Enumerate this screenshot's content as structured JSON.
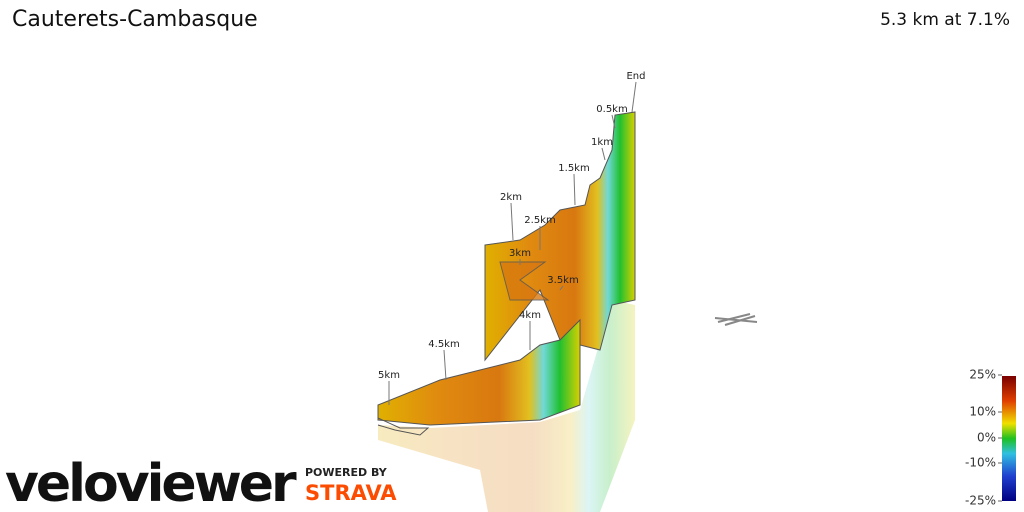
{
  "header": {
    "title": "Cauterets-Cambasque",
    "summary": "5.3 km at 7.1%"
  },
  "markers": [
    "End",
    "0.5km",
    "1km",
    "1.5km",
    "2km",
    "2.5km",
    "3km",
    "3.5km",
    "4km",
    "4.5km",
    "5km"
  ],
  "colorbar": {
    "ticks": [
      {
        "value": 25,
        "label": "25%"
      },
      {
        "value": 10,
        "label": "10%"
      },
      {
        "value": 0,
        "label": "0%"
      },
      {
        "value": -10,
        "label": "-10%"
      },
      {
        "value": -25,
        "label": "-25%"
      }
    ]
  },
  "branding": {
    "logo": "veloviewer",
    "powered": "POWERED BY",
    "partner": "STRAVA"
  }
}
